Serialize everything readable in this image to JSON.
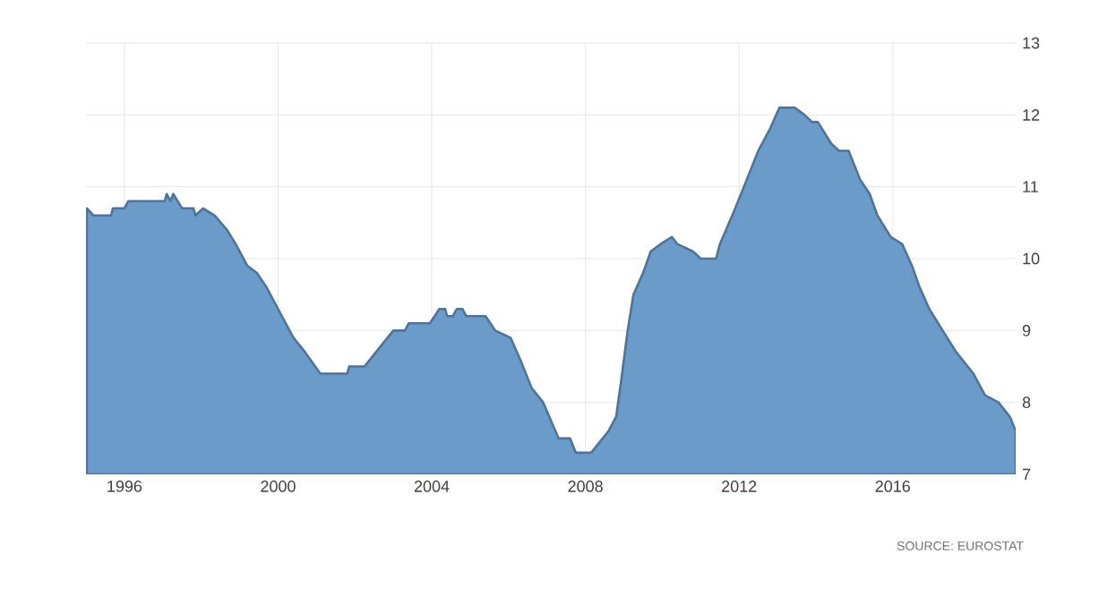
{
  "chart_data": {
    "type": "area",
    "color": "#6a9bc9",
    "x": [
      1995.02,
      1995.2,
      1995.65,
      1995.7,
      1996.0,
      1996.1,
      1997.05,
      1997.1,
      1997.2,
      1997.27,
      1997.5,
      1997.8,
      1997.85,
      1998.05,
      1998.35,
      1998.67,
      1998.9,
      1999.2,
      1999.45,
      1999.7,
      2000.0,
      2000.4,
      2000.7,
      2001.1,
      2001.8,
      2001.85,
      2002.25,
      2002.55,
      2003.0,
      2003.3,
      2003.4,
      2003.95,
      2004.2,
      2004.35,
      2004.4,
      2004.55,
      2004.65,
      2004.8,
      2004.9,
      2005.4,
      2005.65,
      2006.05,
      2006.3,
      2006.6,
      2006.9,
      2007.3,
      2007.6,
      2007.75,
      2008.15,
      2008.3,
      2008.6,
      2008.8,
      2008.93,
      2009.1,
      2009.25,
      2009.5,
      2009.7,
      2009.95,
      2010.25,
      2010.4,
      2010.8,
      2011.0,
      2011.4,
      2011.5,
      2011.9,
      2012.2,
      2012.5,
      2012.8,
      2013.05,
      2013.45,
      2013.7,
      2013.9,
      2014.05,
      2014.4,
      2014.6,
      2014.85,
      2015.15,
      2015.4,
      2015.6,
      2015.95,
      2016.25,
      2016.5,
      2016.7,
      2016.95,
      2017.3,
      2017.65,
      2018.1,
      2018.4,
      2018.75,
      2019.05,
      2019.2
    ],
    "values": [
      10.7,
      10.6,
      10.6,
      10.7,
      10.7,
      10.8,
      10.8,
      10.9,
      10.8,
      10.9,
      10.7,
      10.7,
      10.6,
      10.7,
      10.6,
      10.4,
      10.2,
      9.9,
      9.8,
      9.6,
      9.3,
      8.9,
      8.7,
      8.4,
      8.4,
      8.5,
      8.5,
      8.7,
      9.0,
      9.0,
      9.1,
      9.1,
      9.3,
      9.3,
      9.2,
      9.2,
      9.3,
      9.3,
      9.2,
      9.2,
      9.0,
      8.9,
      8.6,
      8.2,
      8.0,
      7.5,
      7.5,
      7.3,
      7.3,
      7.4,
      7.6,
      7.8,
      8.3,
      9.0,
      9.5,
      9.8,
      10.1,
      10.2,
      10.3,
      10.2,
      10.1,
      10.0,
      10.0,
      10.2,
      10.7,
      11.1,
      11.5,
      11.8,
      12.1,
      12.1,
      12.0,
      11.9,
      11.9,
      11.6,
      11.5,
      11.5,
      11.1,
      10.9,
      10.6,
      10.3,
      10.2,
      9.9,
      9.6,
      9.3,
      9.0,
      8.7,
      8.4,
      8.1,
      8.0,
      7.8,
      7.6
    ],
    "xlim": [
      1995,
      2019.2
    ],
    "ylim": [
      7,
      13
    ],
    "xticks": [
      1996,
      2000,
      2004,
      2008,
      2012,
      2016
    ],
    "yticks": [
      7,
      8,
      9,
      10,
      11,
      12,
      13
    ],
    "grid": true,
    "annotations": [
      "SOURCE: EUROSTAT"
    ]
  }
}
